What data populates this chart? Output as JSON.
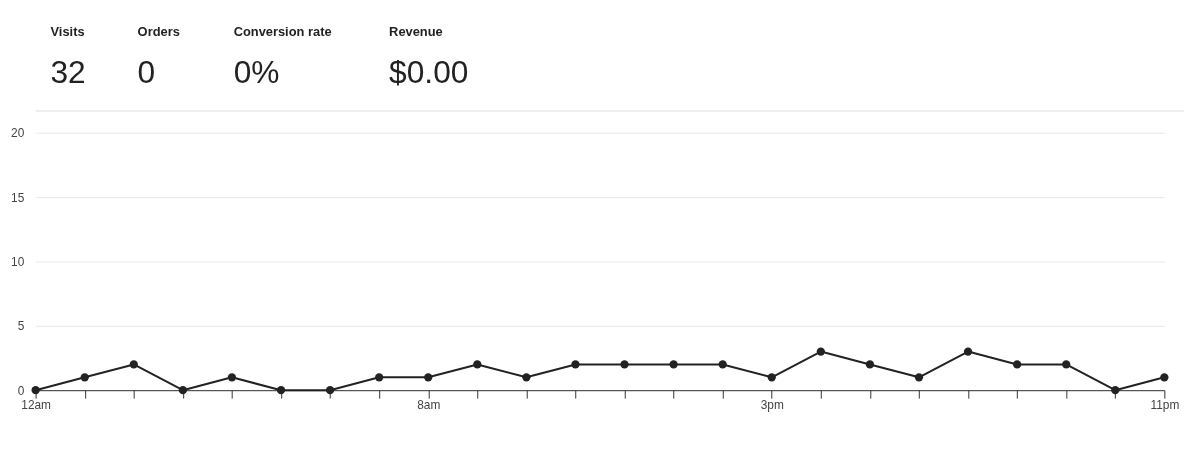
{
  "chart_data": [
    {
      "type": "other",
      "annotations": [
        "Visits",
        "32",
        "Orders",
        "0",
        "Conversion rate",
        "0%",
        "Revenue",
        "$0.00"
      ]
    },
    {
      "type": "line",
      "categories": [
        "12am",
        null,
        null,
        null,
        null,
        null,
        null,
        null,
        "8am",
        null,
        null,
        null,
        null,
        null,
        null,
        "3pm",
        null,
        null,
        null,
        null,
        null,
        null,
        null,
        "11pm"
      ],
      "series": [
        {
          "color": "#222222",
          "values": [
            0,
            1,
            2,
            0,
            1,
            0,
            0,
            1,
            1,
            2,
            1,
            2,
            2,
            2,
            2,
            1,
            3,
            2,
            1,
            3,
            2,
            2,
            0,
            1
          ]
        }
      ],
      "ylim": [
        0,
        20
      ],
      "yticks": [
        0,
        5,
        10,
        15,
        20
      ],
      "grid": "y",
      "marker": "circle",
      "line_style": "solid"
    }
  ]
}
